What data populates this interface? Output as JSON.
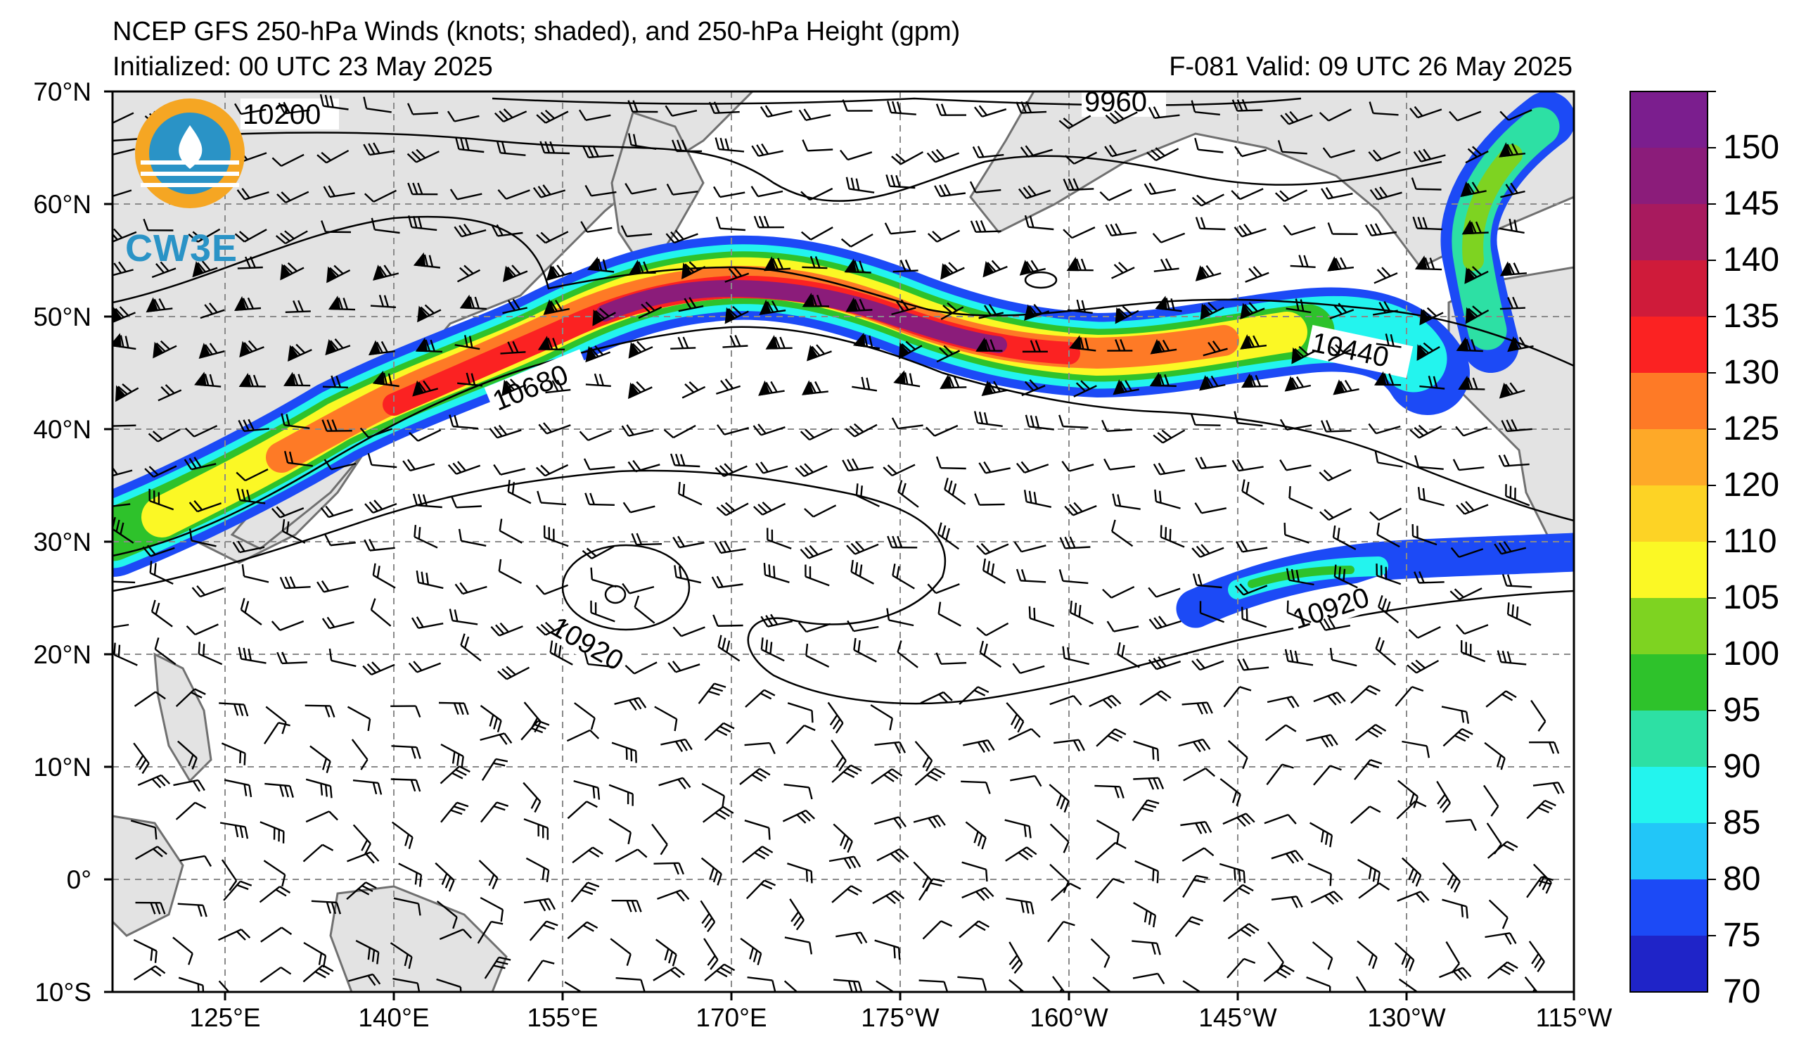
{
  "title": "NCEP GFS 250-hPa Winds (knots; shaded), and 250-hPa Height (gpm)",
  "initialized": "Initialized: 00 UTC 23 May 2025",
  "valid": "F-081  Valid: 09 UTC 26 May 2025",
  "logo": {
    "text": "CW3E",
    "icon": "cw3e-logo-icon"
  },
  "lat_labels": [
    "70°N",
    "60°N",
    "50°N",
    "40°N",
    "30°N",
    "20°N",
    "10°N",
    "0°",
    "10°S"
  ],
  "lon_labels": [
    "125°E",
    "140°E",
    "155°E",
    "170°E",
    "175°W",
    "160°W",
    "145°W",
    "130°W",
    "115°W"
  ],
  "contour_labels": [
    "10200",
    "9960",
    "10680",
    "10440",
    "10920",
    "10920"
  ],
  "colorbar": {
    "ticks": [
      "150",
      "145",
      "140",
      "135",
      "130",
      "125",
      "120",
      "110",
      "105",
      "100",
      "95",
      "90",
      "85",
      "80",
      "75",
      "70"
    ],
    "colors": [
      "#7b1e8e",
      "#8b1c7a",
      "#a81a5e",
      "#cf1b3a",
      "#fb2222",
      "#fe7a26",
      "#fea928",
      "#fdd325",
      "#fbf825",
      "#7ed321",
      "#2ec22b",
      "#2de0a4",
      "#23f4ee",
      "#22c6f8",
      "#1c4af6",
      "#1f24c8"
    ]
  }
}
